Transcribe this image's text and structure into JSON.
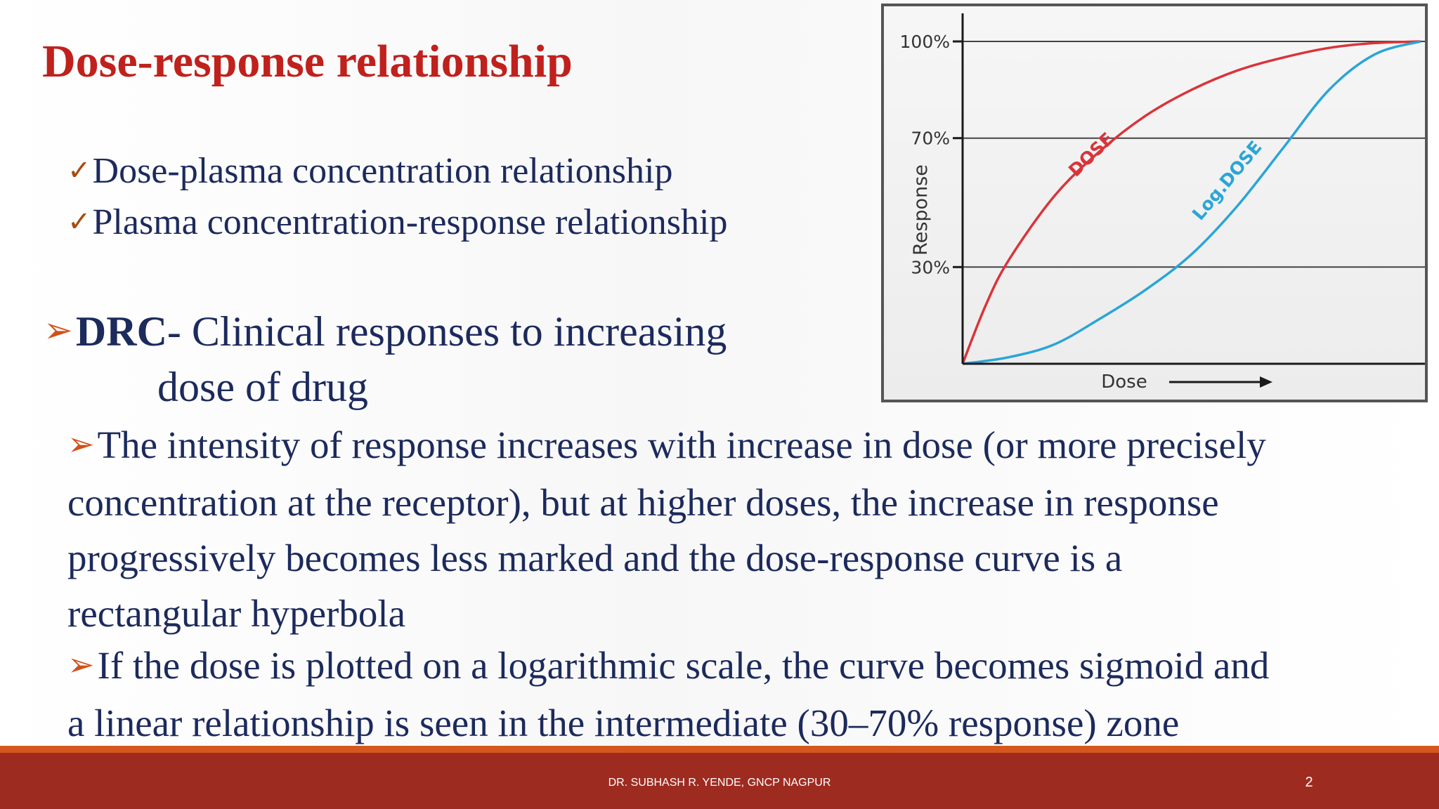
{
  "slide": {
    "title": "Dose-response relationship",
    "checks": [
      {
        "mark": "✓",
        "text": "Dose-plasma concentration relationship"
      },
      {
        "mark": "✓",
        "text": "Plasma concentration-response relationship"
      }
    ],
    "drc": {
      "arrow": "➢",
      "bold": "DRC",
      "text": "- Clinical responses to increasing",
      "continuation": "dose of drug"
    },
    "para1": {
      "arrow": "➢",
      "lines": [
        "The intensity of response increases with increase in dose (or more precisely",
        "concentration at the receptor), but at higher doses, the increase in response",
        "progressively becomes less marked and the dose-response curve is a",
        "rectangular hyperbola"
      ]
    },
    "para2": {
      "arrow": "➢",
      "lines": [
        "If the dose is plotted on a logarithmic scale, the curve becomes sigmoid and",
        "a linear relationship is seen in the intermediate (30–70% response) zone"
      ]
    }
  },
  "footer": {
    "text": "DR. SUBHASH R. YENDE, GNCP NAGPUR",
    "page": "2"
  },
  "chart_data": {
    "type": "line",
    "xlabel": "Dose",
    "ylabel": "Response",
    "yticks": [
      "100%",
      "70%",
      "30%"
    ],
    "ytick_values": [
      100,
      70,
      30
    ],
    "ylim": [
      0,
      100
    ],
    "grid": true,
    "series": [
      {
        "name": "DOSE",
        "color": "#d9343a",
        "shape": "hyperbola",
        "x": [
          0,
          0.05,
          0.1,
          0.2,
          0.3,
          0.4,
          0.5,
          0.6,
          0.7,
          0.8,
          0.9,
          1.0
        ],
        "y": [
          0,
          18,
          32,
          52,
          66,
          77,
          85,
          91,
          95,
          98,
          99.5,
          100
        ]
      },
      {
        "name": "Log.DOSE",
        "color": "#2aa5d6",
        "shape": "sigmoid",
        "x": [
          0,
          0.1,
          0.2,
          0.3,
          0.4,
          0.5,
          0.6,
          0.7,
          0.8,
          0.9,
          1.0
        ],
        "y": [
          0,
          2,
          6,
          14,
          23,
          34,
          49,
          67,
          85,
          96,
          100
        ]
      }
    ]
  }
}
